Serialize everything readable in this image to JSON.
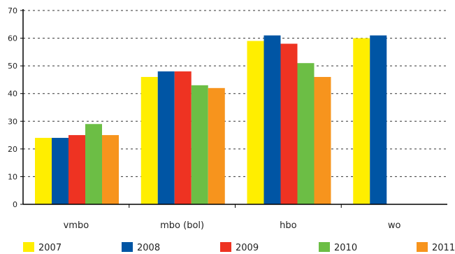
{
  "chart_data": {
    "type": "bar",
    "title": "",
    "xlabel": "",
    "ylabel": "",
    "ylim": [
      0,
      70
    ],
    "yticks": [
      0,
      10,
      20,
      30,
      40,
      50,
      60,
      70
    ],
    "grid": true,
    "legend_position": "bottom",
    "categories": [
      "vmbo",
      "mbo (bol)",
      "hbo",
      "wo"
    ],
    "series": [
      {
        "name": "2007",
        "color": "#FFEE00",
        "values": [
          24,
          46,
          59,
          60
        ]
      },
      {
        "name": "2008",
        "color": "#0055A4",
        "values": [
          24,
          48,
          61,
          61
        ]
      },
      {
        "name": "2009",
        "color": "#EE3322",
        "values": [
          25,
          48,
          58,
          null
        ]
      },
      {
        "name": "2010",
        "color": "#6CBE45",
        "values": [
          29,
          43,
          51,
          null
        ]
      },
      {
        "name": "2011",
        "color": "#F7941D",
        "values": [
          25,
          42,
          46,
          null
        ]
      }
    ]
  }
}
